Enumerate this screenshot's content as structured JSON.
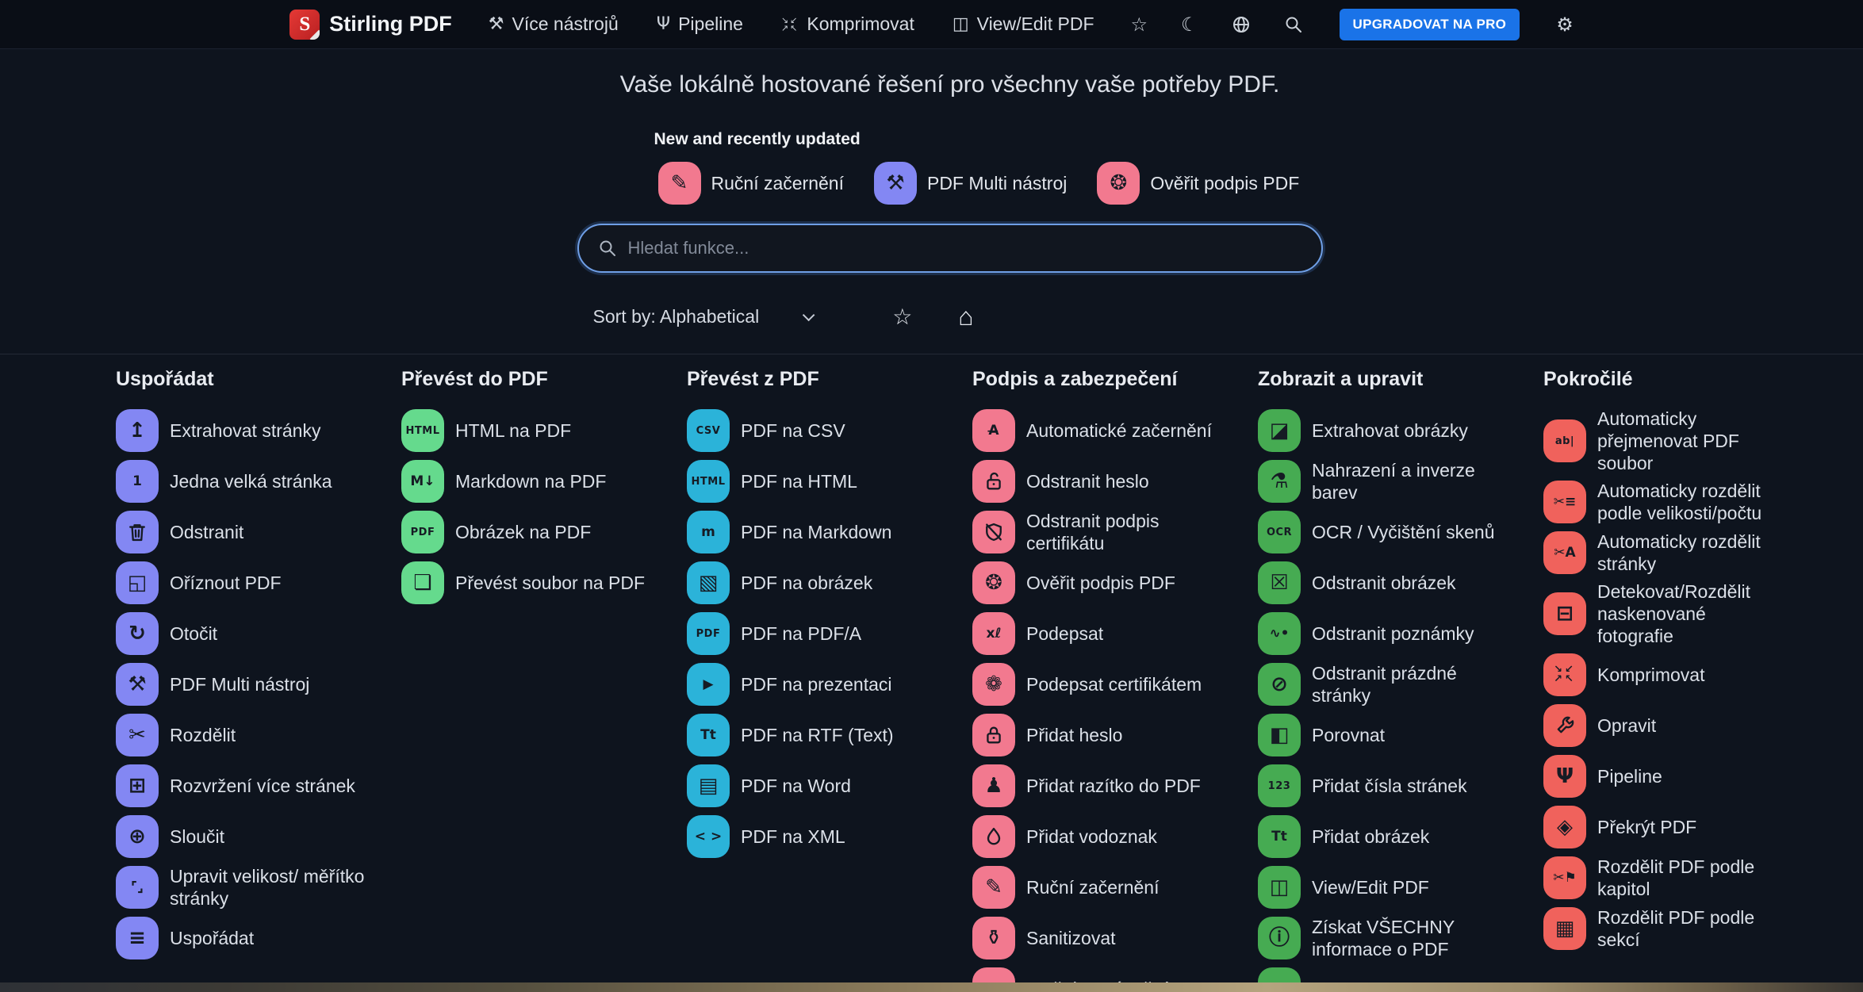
{
  "colors": {
    "accent_blue": "#1a73e8",
    "search_border": "#6f9fe6",
    "purple": "#8387f3",
    "light_green": "#65da8d",
    "cyan": "#2bb3d9",
    "pink": "#f2798f",
    "green": "#46ab52",
    "red": "#f0625c"
  },
  "navbar": {
    "logo_letter": "S",
    "brand": "Stirling PDF",
    "items": [
      {
        "id": "more-tools",
        "icon": "tools-icon",
        "glyph": "⚒",
        "label": "Více nástrojů"
      },
      {
        "id": "pipeline",
        "icon": "pipeline-icon",
        "glyph": "Ψ",
        "label": "Pipeline"
      },
      {
        "id": "compress",
        "icon": "compress-icon",
        "glyph": "↘↙\n↗↖",
        "label": "Komprimovat"
      },
      {
        "id": "view-edit-pdf",
        "icon": "book-open-icon",
        "glyph": "◫",
        "label": "View/Edit PDF"
      }
    ],
    "icon_buttons": [
      {
        "id": "favorites",
        "icon": "star-icon",
        "glyph": "☆"
      },
      {
        "id": "theme-toggle",
        "icon": "moon-icon",
        "glyph": "☾"
      },
      {
        "id": "language",
        "icon": "globe-icon",
        "glyph": ""
      },
      {
        "id": "search",
        "icon": "search-icon",
        "glyph": ""
      }
    ],
    "upgrade_label": "UPGRADOVAT NA PRO",
    "settings_glyph": "⚙"
  },
  "hero": {
    "title": "Vaše lokálně hostované řešení pro všechny vaše potřeby PDF.",
    "new_label": "New and recently updated",
    "featured": [
      {
        "id": "manual-redact",
        "icon": "manual-redact-icon",
        "glyph": "✎",
        "color": "#f2798f",
        "label": "Ruční začernění"
      },
      {
        "id": "pdf-multi-tool",
        "icon": "multi-tool-icon",
        "glyph": "⚒",
        "color": "#8387f3",
        "label": "PDF Multi nástroj"
      },
      {
        "id": "validate-signature",
        "icon": "badge-check-icon",
        "glyph": "❂",
        "color": "#f2798f",
        "label": "Ověřit podpis PDF"
      }
    ],
    "search_placeholder": "Hledat funkce...",
    "sort_label": "Sort by: Alphabetical",
    "star_glyph": "☆",
    "home_glyph": "⌂"
  },
  "columns": [
    {
      "id": "usporadat",
      "title": "Uspořádat",
      "color": "#8387f3",
      "items": [
        {
          "icon": "extract-pages-icon",
          "glyph": "↥",
          "label": "Extrahovat stránky"
        },
        {
          "icon": "single-large-page-icon",
          "glyph": "1",
          "size": "md",
          "label": "Jedna velká stránka"
        },
        {
          "icon": "trash-icon",
          "glyph": "",
          "label": "Odstranit"
        },
        {
          "icon": "crop-icon",
          "glyph": "◱",
          "label": "Oříznout PDF"
        },
        {
          "icon": "rotate-icon",
          "glyph": "↻",
          "label": "Otočit"
        },
        {
          "icon": "multi-tool-icon",
          "glyph": "⚒",
          "label": "PDF Multi nástroj"
        },
        {
          "icon": "split-icon",
          "glyph": "✂",
          "label": "Rozdělit"
        },
        {
          "icon": "multi-page-layout-icon",
          "glyph": "⊞",
          "label": "Rozvržení více stránek"
        },
        {
          "icon": "merge-icon",
          "glyph": "⊕",
          "label": "Sloučit"
        },
        {
          "icon": "page-resize-icon",
          "glyph": "⌜⌟",
          "size": "md",
          "label": "Upravit velikost/ měřítko stránky"
        },
        {
          "icon": "organize-icon",
          "glyph": "≡",
          "label": "Uspořádat"
        }
      ]
    },
    {
      "id": "prevest-do-pdf",
      "title": "Převést do PDF",
      "color": "#65da8d",
      "items": [
        {
          "icon": "html-icon",
          "glyph": "HTML",
          "size": "sm",
          "label": "HTML na PDF"
        },
        {
          "icon": "markdown-icon",
          "glyph": "M↓",
          "size": "md",
          "label": "Markdown na PDF"
        },
        {
          "icon": "pdf-pages-icon",
          "glyph": "PDF",
          "size": "sm",
          "label": "Obrázek na PDF"
        },
        {
          "icon": "file-icon",
          "glyph": "❏",
          "label": "Převést soubor na PDF"
        }
      ]
    },
    {
      "id": "prevest-z-pdf",
      "title": "Převést z PDF",
      "color": "#2bb3d9",
      "items": [
        {
          "icon": "csv-icon",
          "glyph": "CSV",
          "size": "sm",
          "label": "PDF na CSV"
        },
        {
          "icon": "html-icon",
          "glyph": "HTML",
          "size": "sm",
          "label": "PDF na HTML"
        },
        {
          "icon": "markdown-pages-icon",
          "glyph": "m",
          "size": "md",
          "label": "PDF na Markdown"
        },
        {
          "icon": "image-pages-icon",
          "glyph": "▧",
          "label": "PDF na obrázek"
        },
        {
          "icon": "pdfa-icon",
          "glyph": "PDF",
          "size": "sm",
          "label": "PDF na PDF/A"
        },
        {
          "icon": "presentation-icon",
          "glyph": "▶",
          "size": "md",
          "label": "PDF na prezentaci"
        },
        {
          "icon": "rtf-text-icon",
          "glyph": "Tt",
          "size": "md",
          "label": "PDF na RTF (Text)"
        },
        {
          "icon": "word-doc-icon",
          "glyph": "▤",
          "label": "PDF na Word"
        },
        {
          "icon": "xml-code-icon",
          "glyph": "< >",
          "size": "md",
          "label": "PDF na XML"
        }
      ]
    },
    {
      "id": "podpis-a-zabezpeceni",
      "title": "Podpis a zabezpečení",
      "color": "#f2798f",
      "items": [
        {
          "icon": "auto-redact-icon",
          "glyph": "A̶",
          "size": "md",
          "label": "Automatické začernění"
        },
        {
          "icon": "lock-open-icon",
          "glyph": "",
          "label": "Odstranit heslo"
        },
        {
          "icon": "shield-off-icon",
          "glyph": "",
          "label": "Odstranit podpis certifikátu"
        },
        {
          "icon": "badge-check-icon",
          "glyph": "❂",
          "label": "Ověřit podpis PDF"
        },
        {
          "icon": "signature-icon",
          "glyph": "xℓ",
          "size": "md",
          "label": "Podepsat"
        },
        {
          "icon": "certificate-badge-icon",
          "glyph": "❁",
          "label": "Podepsat certifikátem"
        },
        {
          "icon": "lock-closed-icon",
          "glyph": "",
          "label": "Přidat heslo"
        },
        {
          "icon": "stamp-icon",
          "glyph": "♟",
          "label": "Přidat razítko do PDF"
        },
        {
          "icon": "droplet-icon",
          "glyph": "",
          "label": "Přidat vodoznak"
        },
        {
          "icon": "manual-redact-icon",
          "glyph": "✎",
          "label": "Ruční začernění"
        },
        {
          "icon": "sanitize-icon",
          "glyph": "⚱",
          "label": "Sanitizovat"
        },
        {
          "icon": "permissions-icon",
          "glyph": "⌂",
          "label": "Změnit oprávnění"
        }
      ]
    },
    {
      "id": "zobrazit-a-upravit",
      "title": "Zobrazit a upravit",
      "color": "#46ab52",
      "items": [
        {
          "icon": "extract-images-icon",
          "glyph": "◪",
          "label": "Extrahovat obrázky"
        },
        {
          "icon": "color-replace-icon",
          "glyph": "⚗",
          "label": "Nahrazení a inverze barev"
        },
        {
          "icon": "ocr-icon",
          "glyph": "OCR",
          "size": "sm",
          "label": "OCR / Vyčištění skenů"
        },
        {
          "icon": "remove-image-icon",
          "glyph": "☒",
          "label": "Odstranit obrázek"
        },
        {
          "icon": "remove-annotations-icon",
          "glyph": "∿•",
          "size": "md",
          "label": "Odstranit poznámky"
        },
        {
          "icon": "remove-blank-pages-icon",
          "glyph": "⊘",
          "label": "Odstranit prázdné stránky"
        },
        {
          "icon": "compare-icon",
          "glyph": "◧",
          "label": "Porovnat"
        },
        {
          "icon": "page-numbers-icon",
          "glyph": "123",
          "size": "sm",
          "label": "Přidat čísla stránek"
        },
        {
          "icon": "add-image-icon",
          "glyph": "Tt",
          "size": "md",
          "label": "Přidat obrázek"
        },
        {
          "icon": "book-open-icon",
          "glyph": "◫",
          "label": "View/Edit PDF"
        },
        {
          "icon": "info-icon",
          "glyph": "ⓘ",
          "label": "Získat VŠECHNY informace o PDF"
        },
        {
          "icon": "hidden-tool-icon",
          "glyph": "",
          "label": ""
        }
      ]
    },
    {
      "id": "pokrocile",
      "title": "Pokročilé",
      "color": "#f0625c",
      "items": [
        {
          "icon": "auto-rename-icon",
          "glyph": "ab|",
          "size": "sm",
          "label": "Automaticky přejmenovat PDF soubor"
        },
        {
          "icon": "split-by-size-icon",
          "glyph": "✂≡",
          "size": "md",
          "label": "Automaticky rozdělit podle velikosti/počtu"
        },
        {
          "icon": "auto-split-pages-icon",
          "glyph": "✂A",
          "size": "md",
          "label": "Automaticky rozdělit stránky"
        },
        {
          "icon": "scanner-icon",
          "glyph": "⊟",
          "label": "Detekovat/Rozdělit naskenované fotografie"
        },
        {
          "icon": "compress-icon",
          "glyph": "↘↙\n↗↖",
          "label": "Komprimovat"
        },
        {
          "icon": "wrench-icon",
          "glyph": "",
          "label": "Opravit"
        },
        {
          "icon": "pipeline-icon",
          "glyph": "Ψ",
          "label": "Pipeline"
        },
        {
          "icon": "overlay-icon",
          "glyph": "◈",
          "label": "Překrýt PDF"
        },
        {
          "icon": "split-chapters-icon",
          "glyph": "✂⚑",
          "size": "md",
          "label": "Rozdělit PDF podle kapitol"
        },
        {
          "icon": "sections-grid-icon",
          "glyph": "▦",
          "label": "Rozdělit PDF podle sekcí"
        }
      ]
    }
  ]
}
